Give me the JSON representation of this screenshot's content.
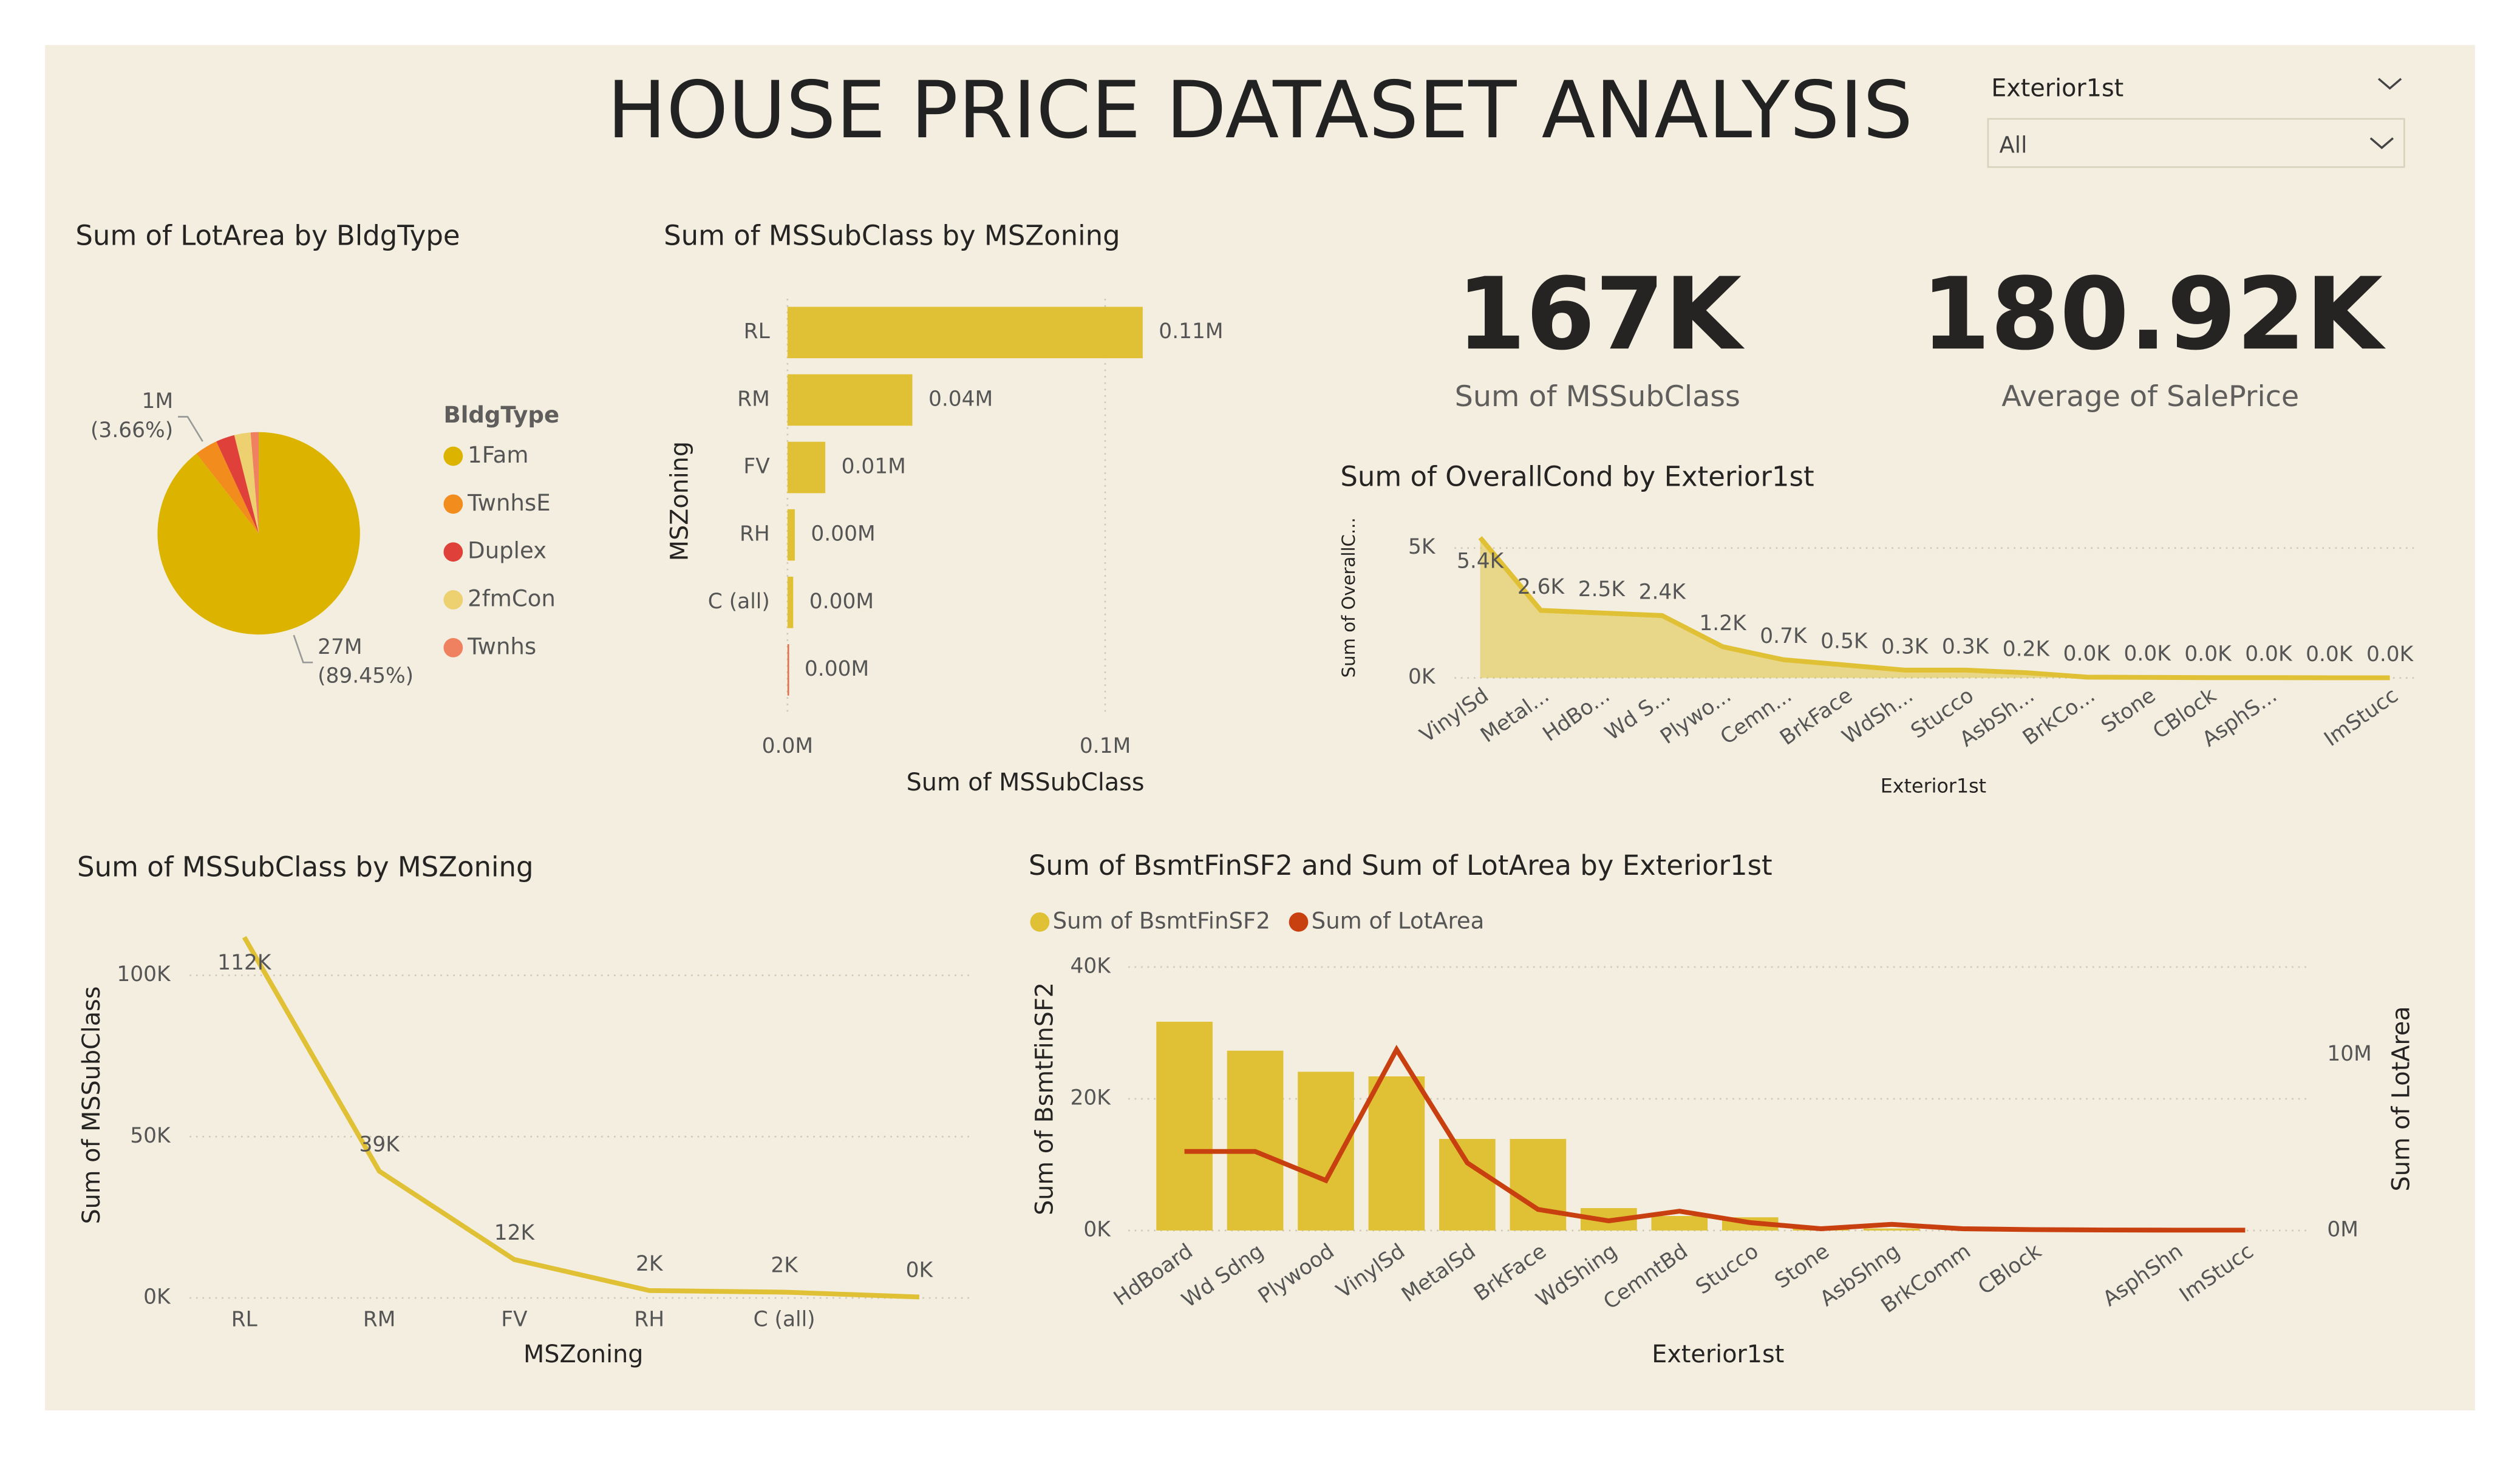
{
  "title": "HOUSE PRICE DATASET ANALYSIS",
  "slicer": {
    "label": "Exterior1st",
    "value": "All"
  },
  "cards": [
    {
      "value": "167K",
      "label": "Sum of MSSubClass"
    },
    {
      "value": "180.92K",
      "label": "Average of SalePrice"
    }
  ],
  "chart_data": [
    {
      "type": "pie",
      "title": "Sum of LotArea by BldgType",
      "legend_title": "BldgType",
      "categories": [
        "1Fam",
        "TwnhsE",
        "Duplex",
        "2fmCon",
        "Twnhs"
      ],
      "values": [
        27000000,
        1105000,
        905000,
        785000,
        389000
      ],
      "colors": [
        "#dcb400",
        "#f28c1c",
        "#e0403a",
        "#edd070",
        "#ef8060"
      ],
      "value_labels": [
        "27M",
        "1M",
        null,
        null,
        null
      ],
      "percent_labels": [
        "(89.45%)",
        "(3.66%)",
        null,
        null,
        null
      ]
    },
    {
      "type": "hbar",
      "title": "Sum of MSSubClass by MSZoning",
      "categories": [
        "RL",
        "RM",
        "FV",
        "RH",
        "C (all)",
        null
      ],
      "values": [
        111800,
        39300,
        11900,
        2300,
        1800,
        300
      ],
      "value_labels": [
        "0.11M",
        "0.04M",
        "0.01M",
        "0.00M",
        "0.00M",
        "0.00M"
      ],
      "color": "#e0c034",
      "xlabel": "Sum of MSSubClass",
      "ylabel": "MSZoning",
      "xlim": [
        0,
        130000
      ],
      "xticks": [
        {
          "value": 0,
          "label": "0.0M"
        },
        {
          "value": 100000,
          "label": "0.1M"
        }
      ],
      "grid": true
    },
    {
      "type": "area",
      "title": "Sum of OverallCond by Exterior1st",
      "categories": [
        "VinylSd",
        "Metal...",
        "HdBo...",
        "Wd S...",
        "Plywo...",
        "Cemn...",
        "BrkFace",
        "WdSh...",
        "Stucco",
        "AsbSh...",
        "BrkCo...",
        "Stone",
        "CBlock",
        "AsphS...",
        null,
        "ImStucc"
      ],
      "values": [
        5400,
        2600,
        2500,
        2400,
        1200,
        700,
        500,
        300,
        300,
        200,
        30,
        20,
        10,
        10,
        5,
        5
      ],
      "value_labels": [
        "5.4K",
        "2.6K",
        "2.5K",
        "2.4K",
        "1.2K",
        "0.7K",
        "0.5K",
        "0.3K",
        "0.3K",
        "0.2K",
        "0.0K",
        "0.0K",
        "0.0K",
        "0.0K",
        "0.0K",
        "0.0K"
      ],
      "color": "#e0c034",
      "xlabel": "Exterior1st",
      "ylabel": "Sum of OverallC...",
      "ylim": [
        0,
        6000
      ],
      "yticks": [
        {
          "value": 0,
          "label": "0K"
        },
        {
          "value": 5000,
          "label": "5K"
        }
      ],
      "grid": true
    },
    {
      "type": "line",
      "title": "Sum of MSSubClass by MSZoning",
      "categories": [
        "RL",
        "RM",
        "FV",
        "RH",
        "C (all)",
        null
      ],
      "values": [
        111800,
        39300,
        11900,
        2300,
        1800,
        300
      ],
      "value_labels": [
        "112K",
        "39K",
        "12K",
        "2K",
        "2K",
        "0K"
      ],
      "color": "#e0c034",
      "xlabel": "MSZoning",
      "ylabel": "Sum of MSSubClass",
      "ylim": [
        0,
        115000
      ],
      "yticks": [
        {
          "value": 0,
          "label": "0K"
        },
        {
          "value": 50000,
          "label": "50K"
        },
        {
          "value": 100000,
          "label": "100K"
        }
      ],
      "grid": true
    },
    {
      "type": "combo",
      "title": "Sum of BsmtFinSF2 and Sum of LotArea by Exterior1st",
      "categories": [
        "HdBoard",
        "Wd Sdng",
        "Plywood",
        "VinylSd",
        "MetalSd",
        "BrkFace",
        "WdShing",
        "CemntBd",
        "Stucco",
        "Stone",
        "AsbShng",
        "BrkComm",
        "CBlock",
        null,
        "AsphShn",
        "ImStucc"
      ],
      "series": [
        {
          "name": "Sum of BsmtFinSF2",
          "color": "#e0c034",
          "mark": "bar",
          "values": [
            31700,
            27300,
            24100,
            23400,
            13900,
            13900,
            3400,
            2200,
            2000,
            500,
            300,
            0,
            0,
            0,
            0,
            0
          ]
        },
        {
          "name": "Sum of LotArea",
          "color": "#c8400f",
          "mark": "line",
          "axis": "y2",
          "values": [
            4500000,
            4500000,
            2850000,
            10300000,
            3850000,
            1200000,
            550000,
            1100000,
            450000,
            100000,
            350000,
            100000,
            50000,
            30000,
            20000,
            20000
          ]
        }
      ],
      "xlabel": "Exterior1st",
      "ylabel": "Sum of BsmtFinSF2",
      "y2label": "Sum of LotArea",
      "ylim": [
        0,
        40000
      ],
      "yticks": [
        {
          "value": 0,
          "label": "0K"
        },
        {
          "value": 20000,
          "label": "20K"
        },
        {
          "value": 40000,
          "label": "40K"
        }
      ],
      "y2lim": [
        0,
        15000000
      ],
      "y2ticks": [
        {
          "value": 0,
          "label": "0M"
        },
        {
          "value": 10000000,
          "label": "10M"
        }
      ],
      "grid": true
    }
  ]
}
